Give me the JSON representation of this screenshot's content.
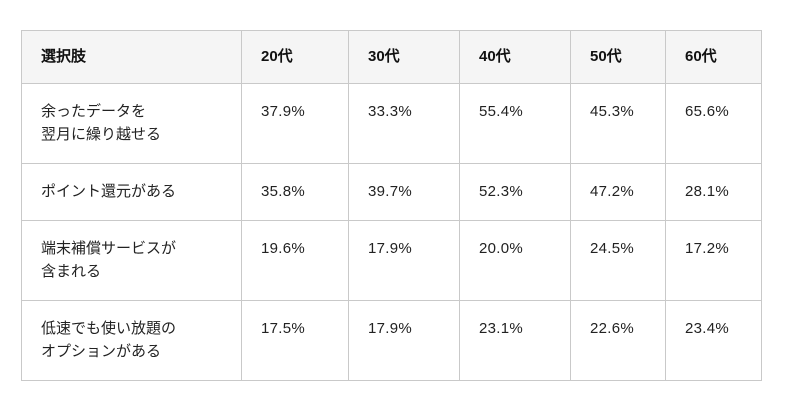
{
  "table": {
    "column_headers": [
      "選択肢",
      "20代",
      "30代",
      "40代",
      "50代",
      "60代"
    ],
    "rows": [
      {
        "label": "余ったデータを\n翌月に繰り越せる",
        "values": [
          "37.9%",
          "33.3%",
          "55.4%",
          "45.3%",
          "65.6%"
        ]
      },
      {
        "label": "ポイント還元がある",
        "values": [
          "35.8%",
          "39.7%",
          "52.3%",
          "47.2%",
          "28.1%"
        ]
      },
      {
        "label": "端末補償サービスが\n含まれる",
        "values": [
          "19.6%",
          "17.9%",
          "20.0%",
          "24.5%",
          "17.2%"
        ]
      },
      {
        "label": "低速でも使い放題の\nオプションがある",
        "values": [
          "17.5%",
          "17.9%",
          "23.1%",
          "22.6%",
          "23.4%"
        ]
      }
    ]
  },
  "colors": {
    "header_bg": "#f5f5f5",
    "border": "#c9c9c9",
    "text": "#222222",
    "header_text": "#111111",
    "page_bg": "#ffffff"
  },
  "chart_data": {
    "type": "table",
    "title": "",
    "first_column_header": "選択肢",
    "categories": [
      "20代",
      "30代",
      "40代",
      "50代",
      "60代"
    ],
    "unit": "%",
    "series": [
      {
        "name": "余ったデータを翌月に繰り越せる",
        "values": [
          37.9,
          33.3,
          55.4,
          45.3,
          65.6
        ]
      },
      {
        "name": "ポイント還元がある",
        "values": [
          35.8,
          39.7,
          52.3,
          47.2,
          28.1
        ]
      },
      {
        "name": "端末補償サービスが含まれる",
        "values": [
          19.6,
          17.9,
          20.0,
          24.5,
          17.2
        ]
      },
      {
        "name": "低速でも使い放題のオプションがある",
        "values": [
          17.5,
          17.9,
          23.1,
          22.6,
          23.4
        ]
      }
    ]
  }
}
